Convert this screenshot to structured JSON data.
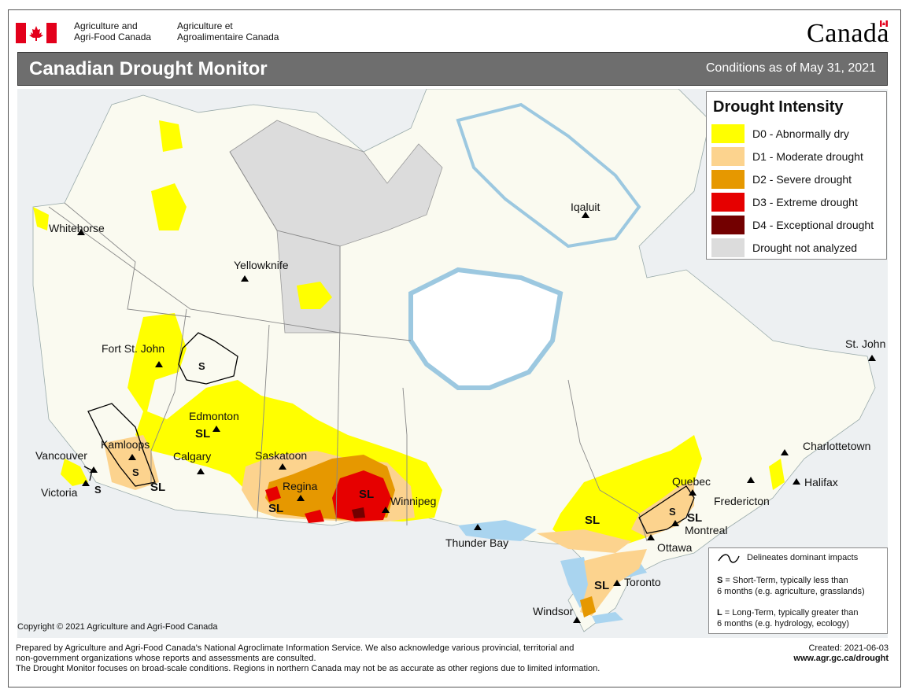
{
  "header": {
    "dept_en_line1": "Agriculture and",
    "dept_en_line2": "Agri-Food Canada",
    "dept_fr_line1": "Agriculture et",
    "dept_fr_line2": "Agroalimentaire Canada",
    "wordmark": "Canada"
  },
  "title": "Canadian Drought Monitor",
  "conditions": "Conditions as of May 31, 2021",
  "legend": {
    "title": "Drought Intensity",
    "items": [
      {
        "label": "D0 - Abnormally dry",
        "color": "#ffff00"
      },
      {
        "label": "D1 - Moderate drought",
        "color": "#fcd38e"
      },
      {
        "label": "D2 - Severe drought",
        "color": "#e69800"
      },
      {
        "label": "D3 - Extreme drought",
        "color": "#e60000"
      },
      {
        "label": "D4 - Exceptional drought",
        "color": "#730000"
      },
      {
        "label": "Drought not analyzed",
        "color": "#dcdcdc"
      }
    ]
  },
  "impacts": {
    "delineates": "Delineates dominant impacts",
    "s_key": "S",
    "s_text_1": " = Short-Term, typically less than",
    "s_text_2": "6 months (e.g. agriculture, grasslands)",
    "l_key": "L",
    "l_text_1": " = Long-Term, typically greater  than",
    "l_text_2": "6 months (e.g. hydrology, ecology)"
  },
  "cities": {
    "whitehorse": "Whitehorse",
    "yellowknife": "Yellowknife",
    "iqaluit": "Iqaluit",
    "fort_st_john": "Fort St. John",
    "edmonton": "Edmonton",
    "kamloops": "Kamloops",
    "calgary": "Calgary",
    "vancouver": "Vancouver",
    "victoria": "Victoria",
    "saskatoon": "Saskatoon",
    "regina": "Regina",
    "winnipeg": "Winnipeg",
    "thunder_bay": "Thunder Bay",
    "quebec": "Quebec",
    "montreal": "Montreal",
    "ottawa": "Ottawa",
    "toronto": "Toronto",
    "windsor": "Windsor",
    "fredericton": "Fredericton",
    "halifax": "Halifax",
    "charlottetown": "Charlottetown",
    "st_john": "St. John"
  },
  "impact_labels": {
    "s_fortstjohn": "S",
    "sl_edmonton": "SL",
    "s_kamloops": "S",
    "sl_bc": "SL",
    "s_victoria": "S",
    "sl_sask": "SL",
    "sl_manitoba": "SL",
    "sl_ontario": "SL",
    "s_quebec": "S",
    "sl_montreal": "SL",
    "sl_toronto": "SL"
  },
  "copyright": "Copyright © 2021 Agriculture and Agri-Food Canada",
  "footer": {
    "line1": "Prepared by Agriculture and Agri-Food Canada's National Agroclimate Information Service.  We also acknowledge various provincial, territorial and",
    "line2": "non-government organizations whose reports and assessments are consulted.",
    "line3": "The Drought Monitor focuses on broad-scale conditions.  Regions in northern Canada may not be as accurate as other regions due to limited information.",
    "created": "Created:  2021-06-03",
    "url": "www.agr.gc.ca/drought"
  },
  "colors": {
    "land": "#fafaf0",
    "water": "#e8f4fb",
    "us_land": "#f0f0f0",
    "not_analyzed": "#dcdcdc",
    "title_bar": "#6e6e6e",
    "flag_red": "#e3001b"
  }
}
